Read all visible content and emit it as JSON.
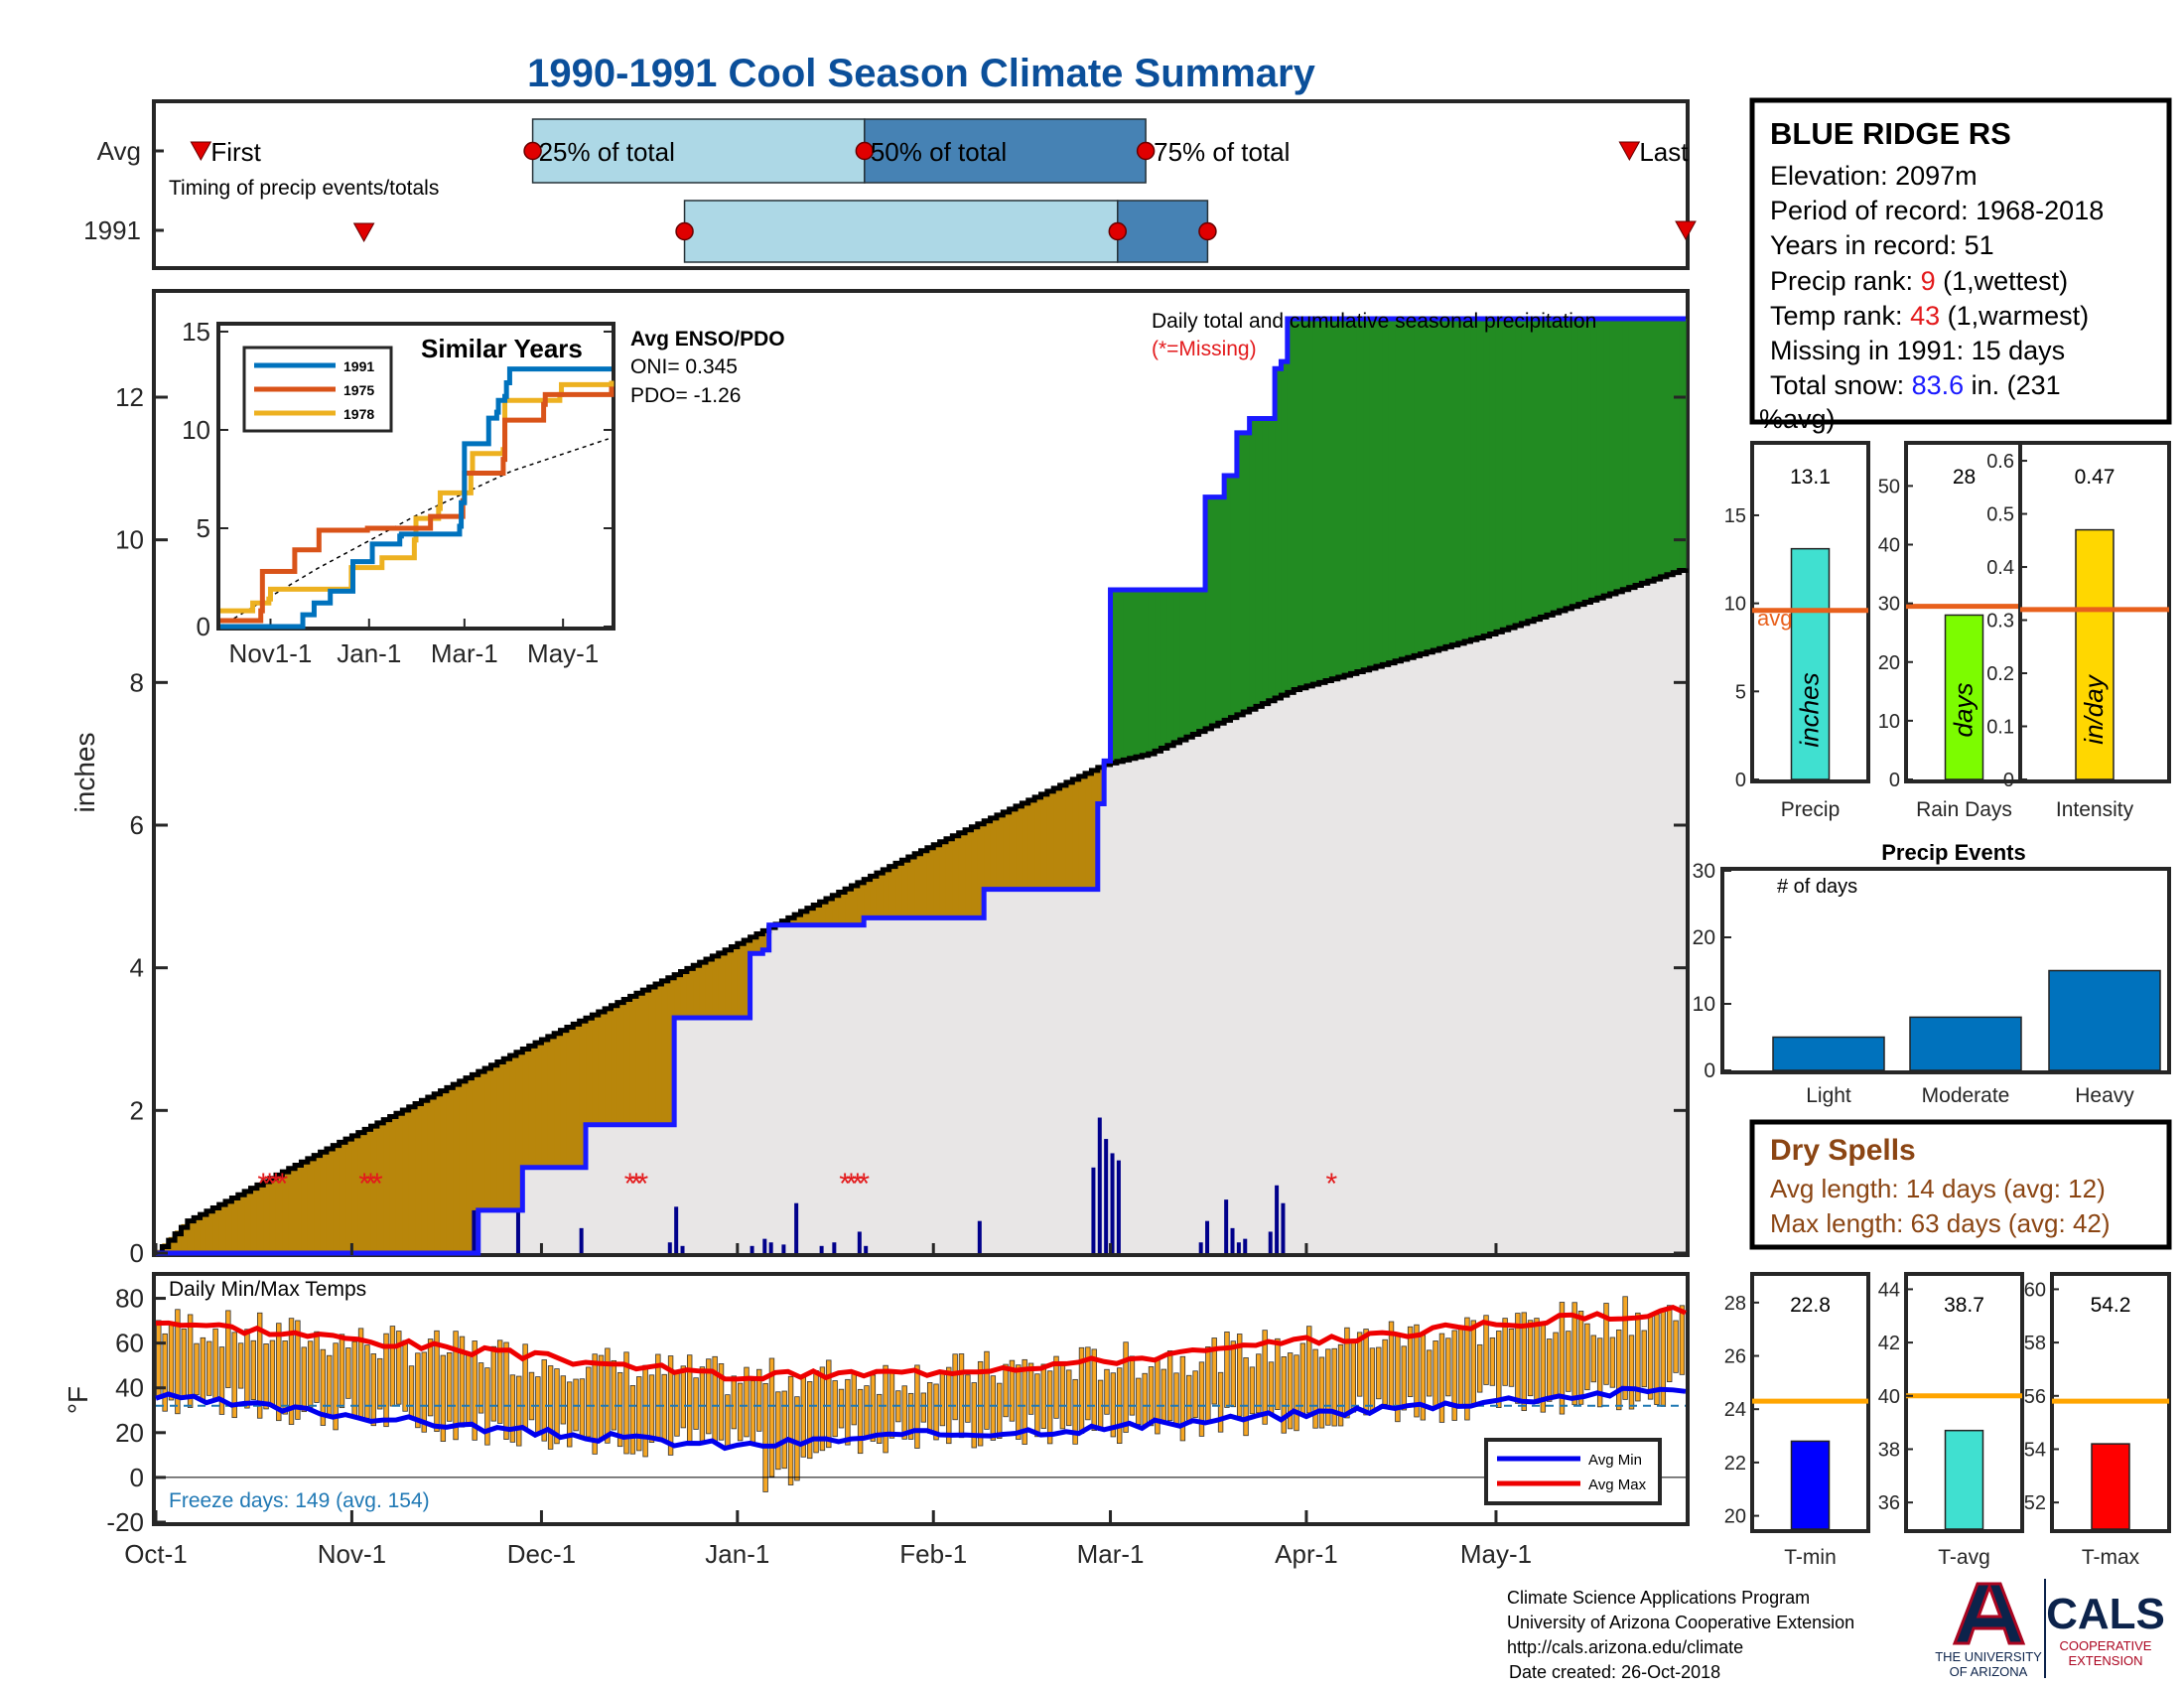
{
  "title": "1990-1991 Cool Season Climate Summary",
  "timing": {
    "row_labels": [
      "Avg",
      "1991"
    ],
    "caption": "Timing of precip events/totals",
    "avg_labels": {
      "first": "First",
      "q25": "25% of total",
      "q50": "50% of total",
      "q75": "75% of total",
      "last": "Last"
    },
    "avg_days": {
      "first": 8,
      "q25": 67,
      "q50": 126,
      "q75": 176,
      "last": 262
    },
    "y1991_days": {
      "first": 37,
      "q25": 94,
      "q50": 171,
      "q75": 187,
      "last": 272
    }
  },
  "station": {
    "name": "BLUE RIDGE RS",
    "elevation_line": "Elevation: 2097m",
    "period_line": "Period of record: 1968-2018",
    "years_line": "Years in record: 51",
    "precip_rank_prefix": "Precip rank: ",
    "precip_rank_value": "9",
    "precip_rank_suffix": " (1,wettest)",
    "temp_rank_prefix": "Temp rank: ",
    "temp_rank_value": "43",
    "temp_rank_suffix": " (1,warmest)",
    "missing_line": "Missing in 1991: 15 days",
    "snow_prefix": "Total snow: ",
    "snow_value": "83.6",
    "snow_suffix": " in. (231",
    "snow_suffix2": "%avg)"
  },
  "colors": {
    "title": "#0b4f9a",
    "obs_line": "#1a1aff",
    "deficit": "#b8860b",
    "surplus": "#228b22",
    "avg_fill": "#e8e6e6",
    "avg_line": "#000000",
    "missing": "#e31a1c",
    "temp_bar": "#f5a623",
    "avg_min": "#0000ee",
    "avg_max": "#ee0000",
    "freeze_line": "#1f78b4",
    "avg_marker": "#e8601c",
    "timing_light": "#add8e6",
    "timing_dark": "#4682b4",
    "timing_dot": "#e00000"
  },
  "chart_data": [
    {
      "type": "area",
      "title": "Daily total and cumulative seasonal precipitation",
      "missing_note": "(*=Missing)",
      "ylabel": "inches",
      "ylim": [
        0,
        13.5
      ],
      "yticks": [
        0,
        2,
        4,
        6,
        8,
        10,
        12
      ],
      "x_dates": [
        "Oct-1",
        "Nov-1",
        "Dec-1",
        "Jan-1",
        "Feb-1",
        "Mar-1",
        "Apr-1",
        "May-1"
      ],
      "x_day_offsets": [
        0,
        31,
        61,
        92,
        123,
        151,
        182,
        212
      ],
      "x_range_days": [
        0,
        242
      ],
      "avg_cumulative": {
        "day": [
          0,
          5,
          30,
          60,
          90,
          120,
          150,
          157,
          180,
          210,
          242
        ],
        "value": [
          0,
          0.45,
          1.6,
          2.95,
          4.25,
          5.6,
          6.85,
          7.0,
          7.9,
          8.65,
          9.6
        ]
      },
      "obs_cumulative": {
        "day": [
          0,
          31,
          50,
          51,
          57,
          58,
          67,
          68,
          81,
          82,
          93,
          94,
          96,
          97,
          111,
          112,
          130,
          131,
          148,
          149,
          150,
          151,
          165,
          166,
          168,
          169,
          170,
          171,
          172,
          173,
          176,
          177,
          178,
          179,
          242
        ],
        "value": [
          0,
          0,
          0,
          0.6,
          0.6,
          1.2,
          1.2,
          1.8,
          1.8,
          3.3,
          3.3,
          4.2,
          4.25,
          4.6,
          4.6,
          4.7,
          4.7,
          5.1,
          5.1,
          6.3,
          6.9,
          9.3,
          9.3,
          10.6,
          10.6,
          10.9,
          10.9,
          11.5,
          11.5,
          11.7,
          11.7,
          12.4,
          12.5,
          13.1,
          13.1
        ]
      },
      "daily_precip": {
        "day": [
          50,
          57,
          67,
          81,
          82,
          83,
          94,
          96,
          97,
          99,
          101,
          105,
          107,
          111,
          112,
          130,
          148,
          149,
          150,
          151,
          152,
          165,
          166,
          169,
          170,
          171,
          172,
          176,
          177,
          178
        ],
        "value": [
          0.6,
          0.6,
          0.35,
          0.15,
          0.65,
          0.1,
          0.1,
          0.2,
          0.15,
          0.12,
          0.7,
          0.1,
          0.15,
          0.3,
          0.1,
          0.45,
          1.2,
          1.9,
          1.6,
          1.4,
          1.3,
          0.15,
          0.45,
          0.75,
          0.35,
          0.15,
          0.2,
          0.3,
          0.95,
          0.7
        ]
      },
      "missing_days": [
        17,
        18,
        19,
        20,
        33,
        34,
        35,
        75,
        76,
        77,
        109,
        110,
        111,
        112,
        186
      ]
    },
    {
      "type": "line",
      "title": "Similar Years",
      "legend": [
        "1991",
        "1975",
        "1978"
      ],
      "series_colors": [
        "#0072bd",
        "#d95319",
        "#edb120"
      ],
      "ylim": [
        0,
        15
      ],
      "yticks": [
        0,
        5,
        10,
        15
      ],
      "x_labels": [
        "Nov1-1",
        "Jan-1",
        "Mar-1",
        "May-1"
      ],
      "x_day_offsets": [
        31,
        92,
        151,
        212
      ],
      "series": [
        {
          "name": "1991",
          "day": [
            0,
            31,
            50,
            51,
            57,
            58,
            67,
            68,
            81,
            82,
            93,
            94,
            111,
            112,
            148,
            149,
            151,
            165,
            166,
            171,
            172,
            176,
            177,
            179,
            242
          ],
          "value": [
            0,
            0,
            0,
            0.6,
            0.6,
            1.2,
            1.2,
            1.8,
            1.8,
            3.3,
            3.3,
            4.2,
            4.6,
            4.7,
            5.1,
            6.3,
            9.3,
            9.3,
            10.6,
            10.9,
            11.5,
            11.7,
            12.4,
            13.1,
            13.1
          ]
        },
        {
          "name": "1975",
          "day": [
            0,
            10,
            25,
            26,
            45,
            46,
            60,
            61,
            90,
            91,
            130,
            150,
            151,
            175,
            176,
            200,
            201,
            242
          ],
          "value": [
            0.3,
            0.3,
            0.8,
            2.8,
            2.8,
            3.9,
            3.9,
            4.9,
            4.9,
            5.0,
            5.6,
            6.4,
            7.8,
            8.5,
            10.5,
            11.3,
            11.8,
            12.2
          ]
        },
        {
          "name": "1978",
          "day": [
            0,
            20,
            30,
            31,
            80,
            81,
            100,
            120,
            121,
            135,
            136,
            155,
            156,
            175,
            176,
            210,
            211,
            242
          ],
          "value": [
            0.8,
            1.2,
            1.4,
            1.9,
            1.9,
            3.0,
            3.5,
            4.4,
            5.5,
            6.0,
            6.8,
            7.8,
            8.8,
            9.0,
            11.5,
            11.8,
            12.3,
            12.5
          ]
        }
      ],
      "avg_dashed": {
        "day": [
          0,
          60,
          120,
          180,
          242
        ],
        "value": [
          0,
          2.95,
          5.6,
          7.9,
          9.6
        ]
      }
    },
    {
      "type": "bar",
      "categories": [
        "Precip",
        "Rain Days",
        "Intensity"
      ],
      "values": [
        13.1,
        28,
        0.47
      ],
      "avg": [
        9.6,
        29.5,
        0.32
      ],
      "units": [
        "inches",
        "days",
        "in/day"
      ],
      "ylims": [
        [
          0,
          19
        ],
        [
          0,
          57
        ],
        [
          0,
          0.63
        ]
      ],
      "yticks": [
        [
          0,
          5,
          10,
          15
        ],
        [
          0,
          10,
          20,
          30,
          40,
          50
        ],
        [
          0,
          0.1,
          0.2,
          0.3,
          0.4,
          0.5,
          0.6
        ]
      ],
      "bar_colors": [
        "#40e0d0",
        "#7cfc00",
        "#ffd700"
      ],
      "avg_label": "avg"
    },
    {
      "type": "bar",
      "title": "Precip Events",
      "ylabel": "# of days",
      "categories": [
        "Light",
        "Moderate",
        "Heavy"
      ],
      "values": [
        5,
        8,
        15
      ],
      "ylim": [
        0,
        30
      ],
      "yticks": [
        0,
        10,
        20,
        30
      ],
      "bar_color": "#0072bd"
    },
    {
      "type": "bar",
      "title": "Daily Min/Max Temps",
      "ylabel": "°F",
      "ylim": [
        -20,
        90
      ],
      "yticks": [
        -20,
        0,
        20,
        40,
        60,
        80
      ],
      "freeze_line_value": 32,
      "freeze_note": "Freeze days: 149 (avg. 154)",
      "legend": [
        "Avg Min",
        "Avg Max"
      ],
      "avg_min": {
        "day": [
          0,
          30,
          60,
          92,
          120,
          150,
          180,
          210,
          242
        ],
        "value": [
          36,
          28,
          20,
          14,
          19,
          22,
          28,
          34,
          40
        ]
      },
      "avg_max": {
        "day": [
          0,
          30,
          60,
          92,
          120,
          150,
          180,
          210,
          242
        ],
        "value": [
          70,
          62,
          54,
          45,
          47,
          52,
          60,
          68,
          75
        ]
      }
    },
    {
      "type": "bar",
      "categories": [
        "T-min",
        "T-avg",
        "T-max"
      ],
      "values": [
        22.8,
        38.7,
        54.2
      ],
      "avg": [
        24.3,
        40.0,
        55.8
      ],
      "ylims": [
        [
          19.5,
          29
        ],
        [
          35,
          44.5
        ],
        [
          51,
          60.5
        ]
      ],
      "yticks": [
        [
          20,
          22,
          24,
          26,
          28
        ],
        [
          36,
          38,
          40,
          42,
          44
        ],
        [
          52,
          54,
          56,
          58,
          60
        ]
      ],
      "bar_colors": [
        "#0000ff",
        "#40e0d0",
        "#ff0000"
      ],
      "avg_color": "#ffa500"
    }
  ],
  "dry_spells": {
    "title": "Dry Spells",
    "avg_line": "Avg length: 14 days (avg: 12)",
    "max_line": "Max length: 63 days (avg: 42)"
  },
  "enso": {
    "title": "Avg ENSO/PDO",
    "oni": "ONI= 0.345",
    "pdo": "PDO= -1.26"
  },
  "footer": {
    "line1": "Climate Science Applications Program",
    "line2": "University of Arizona Cooperative Extension",
    "line3": "http://cals.arizona.edu/climate",
    "line4": "Date created: 26-Oct-2018"
  },
  "logos": {
    "ua_line1": "THE UNIVERSITY",
    "ua_line2": "OF ARIZONA",
    "cals": "CALS",
    "cals_sub1": "COOPERATIVE",
    "cals_sub2": "EXTENSION"
  }
}
